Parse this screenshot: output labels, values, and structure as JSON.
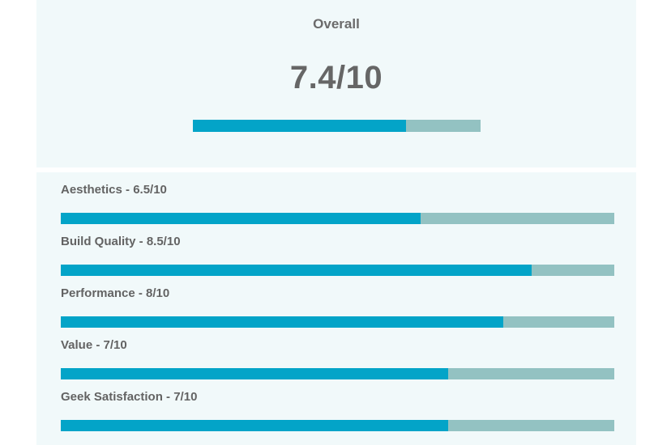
{
  "overall": {
    "title": "Overall",
    "score_label": "7.4/10",
    "score": 7.4,
    "max": 10
  },
  "criteria": [
    {
      "label": "Aesthetics - 6.5/10",
      "score": 6.5,
      "max": 10
    },
    {
      "label": "Build Quality - 8.5/10",
      "score": 8.5,
      "max": 10
    },
    {
      "label": "Performance - 8/10",
      "score": 8,
      "max": 10
    },
    {
      "label": "Value - 7/10",
      "score": 7,
      "max": 10
    },
    {
      "label": "Geek Satisfaction - 7/10",
      "score": 7,
      "max": 10
    }
  ],
  "colors": {
    "fill": "#03a4c8",
    "track": "#93c2c2",
    "panel": "#f1f9fa",
    "text": "#666666"
  }
}
